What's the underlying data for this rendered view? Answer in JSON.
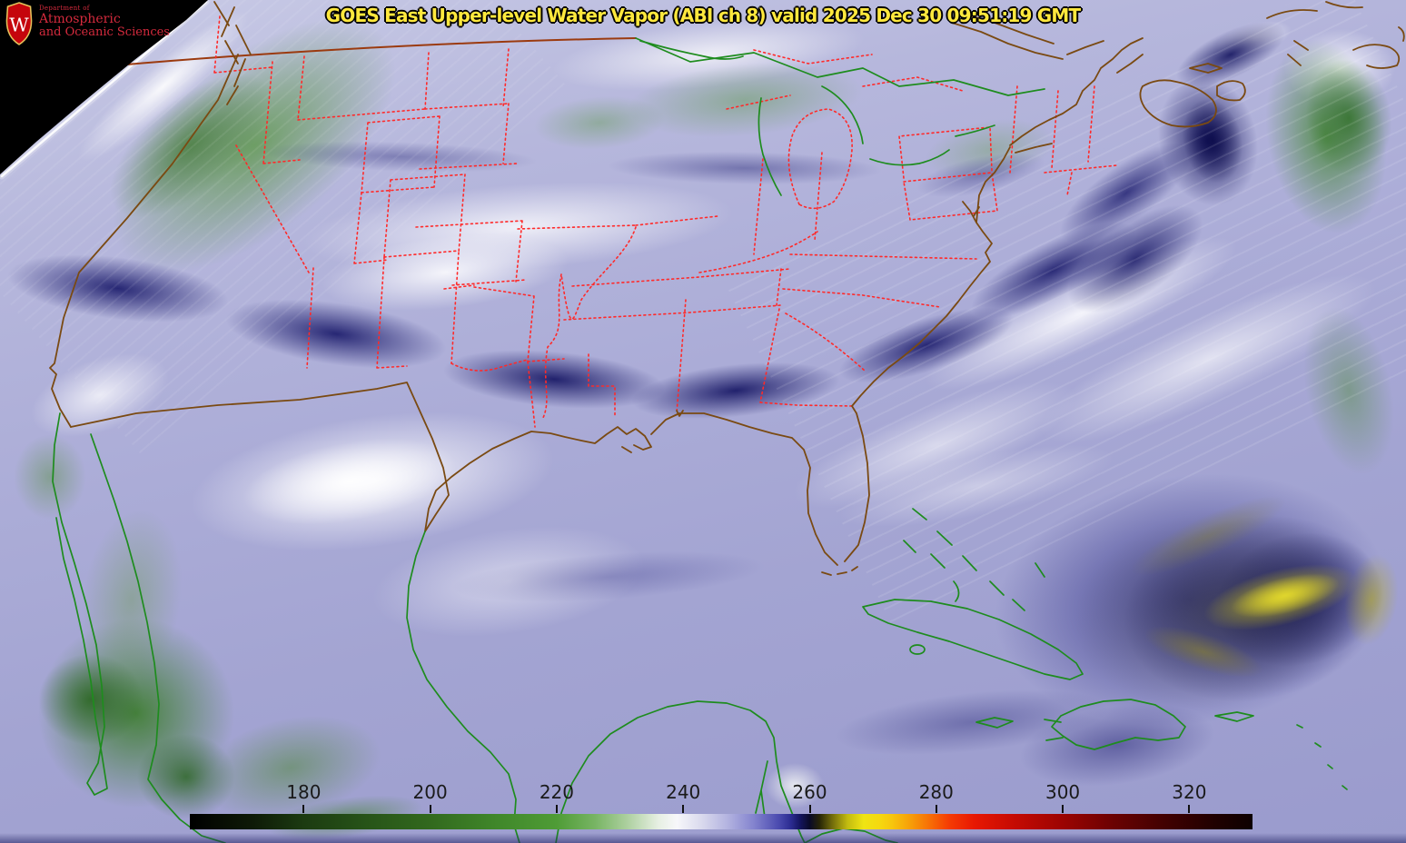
{
  "header": {
    "title": "GOES East Upper-level Water Vapor (ABI ch 8) valid 2025 Dec 30 09:51:19 GMT",
    "title_color": "#ffe83d"
  },
  "logo": {
    "department": "Department of",
    "line1": "Atmospheric",
    "line2": "and Oceanic Sciences",
    "crest_letter": "W",
    "text_color": "#d42a3d",
    "crest_red": "#c5050c",
    "crest_gold": "#e6c25a"
  },
  "colorbar": {
    "tick_labels": [
      "180",
      "200",
      "220",
      "240",
      "260",
      "280",
      "300",
      "320"
    ],
    "tick_values": [
      180,
      200,
      220,
      240,
      260,
      280,
      300,
      320
    ],
    "value_range": [
      162,
      330
    ],
    "label_color": "#1a1a1a",
    "gradient_stops": [
      [
        0,
        "#000000"
      ],
      [
        5.95,
        "#0e1a07"
      ],
      [
        10.71,
        "#1c3b11"
      ],
      [
        16.67,
        "#275418"
      ],
      [
        22.62,
        "#32691e"
      ],
      [
        28.57,
        "#3f8629"
      ],
      [
        34.52,
        "#4f9c36"
      ],
      [
        38.1,
        "#77b463"
      ],
      [
        41.07,
        "#abcf9d"
      ],
      [
        44.05,
        "#e6efe2"
      ],
      [
        45.83,
        "#f7f7fa"
      ],
      [
        48.21,
        "#d9d9ed"
      ],
      [
        50.6,
        "#b3b3e0"
      ],
      [
        52.98,
        "#8585cf"
      ],
      [
        55.36,
        "#4c4cb0"
      ],
      [
        56.55,
        "#2c2c92"
      ],
      [
        57.44,
        "#14145e"
      ],
      [
        58.33,
        "#0a0a28"
      ],
      [
        59.23,
        "#262407"
      ],
      [
        60.42,
        "#706a0b"
      ],
      [
        61.9,
        "#c2bb10"
      ],
      [
        63.39,
        "#efe413"
      ],
      [
        64.88,
        "#f5d90f"
      ],
      [
        66.07,
        "#f7c60d"
      ],
      [
        67.86,
        "#f79d08"
      ],
      [
        69.64,
        "#f76e05"
      ],
      [
        71.43,
        "#f53c04"
      ],
      [
        73.81,
        "#e81803"
      ],
      [
        77.38,
        "#c70b03"
      ],
      [
        82.14,
        "#9c0402"
      ],
      [
        86.9,
        "#6b0202"
      ],
      [
        91.67,
        "#420101"
      ],
      [
        96.43,
        "#200000"
      ],
      [
        100,
        "#0d0000"
      ]
    ]
  },
  "map": {
    "colors": {
      "state_border": "#ff2a2a",
      "us_coast": "#7a4a12",
      "intl_coast": "#1e8c1e",
      "canada_border": "#9b3a0f",
      "limb": "#ffffff"
    }
  },
  "palette": {
    "space_black": "#000000",
    "moist_green": "#4a8a38",
    "dry_navy": "#1a1a6e",
    "very_dry_yellow": "#d8cc2a",
    "mid_lavender": "#a8a9d4"
  }
}
